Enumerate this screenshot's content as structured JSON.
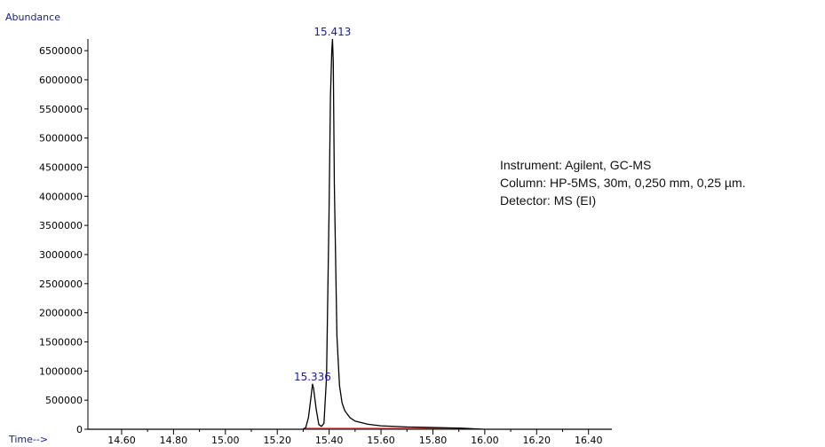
{
  "chart_data": {
    "type": "line",
    "ylabel": "Abundance",
    "xlabel": "Time-->",
    "xlim": [
      14.47,
      16.49
    ],
    "ylim": [
      0,
      6700000
    ],
    "x_ticks": [
      "14.60",
      "14.80",
      "15.00",
      "15.20",
      "15.40",
      "15.60",
      "15.80",
      "16.00",
      "16.20",
      "16.40"
    ],
    "y_ticks": [
      "0",
      "500000",
      "1000000",
      "1500000",
      "2000000",
      "2500000",
      "3000000",
      "3500000",
      "4000000",
      "4500000",
      "5000000",
      "5500000",
      "6000000",
      "6500000"
    ],
    "series": [
      {
        "x": [
          14.47,
          15.3,
          15.31,
          15.32,
          15.33,
          15.336,
          15.34,
          15.35,
          15.36,
          15.37,
          15.38,
          15.39,
          15.4,
          15.405,
          15.41,
          15.413,
          15.416,
          15.42,
          15.43,
          15.44,
          15.45,
          15.46,
          15.48,
          15.5,
          15.55,
          15.6,
          15.7,
          15.8,
          15.9,
          16.0,
          16.2,
          16.49
        ],
        "y": [
          0,
          0,
          30000,
          200000,
          550000,
          780000,
          700000,
          350000,
          80000,
          50000,
          100000,
          900000,
          3800000,
          5700000,
          6500000,
          6700000,
          6300000,
          4200000,
          1600000,
          750000,
          450000,
          320000,
          200000,
          140000,
          85000,
          60000,
          40000,
          30000,
          20000,
          0,
          0,
          0
        ]
      }
    ],
    "peaks": [
      {
        "x": 15.413,
        "label": "15.413"
      },
      {
        "x": 15.336,
        "label": "15.336"
      }
    ],
    "baseline_segment": [
      15.3,
      15.92
    ],
    "colors": {
      "trace": "#000000",
      "peak_label": "#1a1aa6",
      "baseline": "#d32f2f",
      "axis_title": "#1a237e"
    }
  },
  "info": {
    "instrument": "Instrument: Agilent, GC-MS",
    "column": "Column: HP-5MS, 30m, 0,250 mm, 0,25 µm.",
    "detector": "Detector: MS (EI)"
  }
}
